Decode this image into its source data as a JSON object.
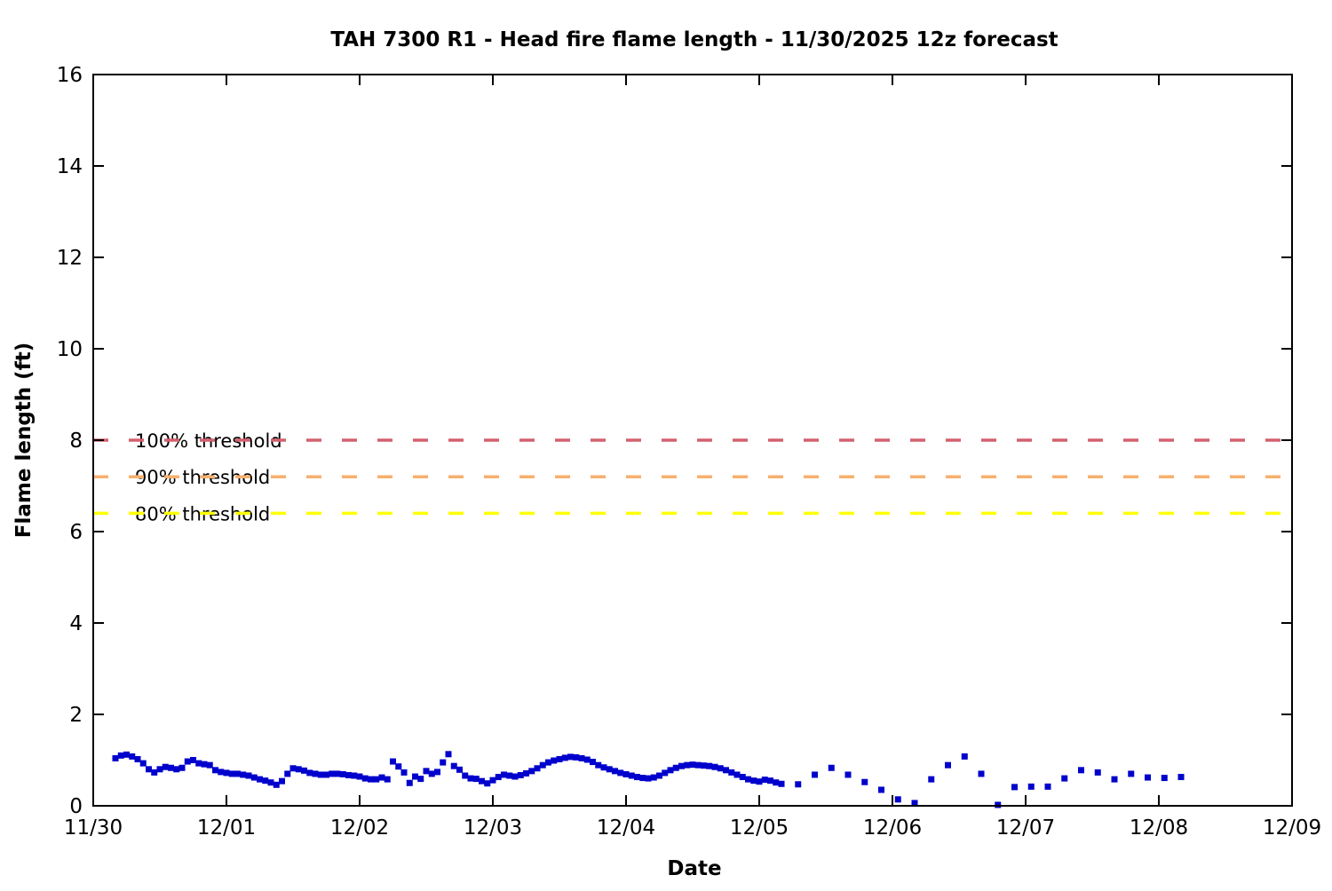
{
  "chart_data": {
    "type": "scatter",
    "title": "TAH 7300 R1 - Head fire flame length - 11/30/2025 12z forecast",
    "xlabel": "Date",
    "ylabel": "Flame length (ft)",
    "ylim": [
      0,
      16
    ],
    "yticks": [
      0,
      2,
      4,
      6,
      8,
      10,
      12,
      14,
      16
    ],
    "xlim_days": [
      0,
      9
    ],
    "xtick_labels": [
      "11/30",
      "12/01",
      "12/02",
      "12/03",
      "12/04",
      "12/05",
      "12/06",
      "12/07",
      "12/08",
      "12/09"
    ],
    "grid": false,
    "legend": "none",
    "marker_color": "#0000cc",
    "marker_shape": "square",
    "thresholds": [
      {
        "label": "100% threshold",
        "value": 8.0,
        "color": "#d4606f"
      },
      {
        "label": "90% threshold",
        "value": 7.2,
        "color": "#f7b06e"
      },
      {
        "label": "80% threshold",
        "value": 6.4,
        "color": "#ffff00"
      }
    ],
    "series": [
      {
        "name": "head fire flame length forecast (ft)",
        "segments": [
          {
            "start_day": 0.1667,
            "step_hours": 1,
            "values": [
              1.04,
              1.1,
              1.12,
              1.08,
              1.02,
              0.93,
              0.8,
              0.73,
              0.8,
              0.85,
              0.83,
              0.8,
              0.83,
              0.97,
              1.0,
              0.93,
              0.91,
              0.89,
              0.78,
              0.74,
              0.72,
              0.7,
              0.7,
              0.68,
              0.66,
              0.62,
              0.58,
              0.55,
              0.51,
              0.46,
              0.54,
              0.7,
              0.82,
              0.8,
              0.77,
              0.72,
              0.7,
              0.68,
              0.68,
              0.7,
              0.7,
              0.69,
              0.67,
              0.66,
              0.64,
              0.6,
              0.58,
              0.58,
              0.62,
              0.58,
              0.97,
              0.86,
              0.73,
              0.5,
              0.64,
              0.59,
              0.76,
              0.7,
              0.74,
              0.95,
              1.13,
              0.87,
              0.79,
              0.66,
              0.6,
              0.59,
              0.54,
              0.49,
              0.56,
              0.63,
              0.68,
              0.66,
              0.64,
              0.67,
              0.71,
              0.76,
              0.82,
              0.89,
              0.95,
              0.99,
              1.02,
              1.05,
              1.07,
              1.06,
              1.04,
              1.01,
              0.96,
              0.89,
              0.84,
              0.8,
              0.76,
              0.72,
              0.69,
              0.66,
              0.63,
              0.61,
              0.6,
              0.62,
              0.66,
              0.72,
              0.78,
              0.83,
              0.87,
              0.89,
              0.9,
              0.89,
              0.88,
              0.87,
              0.85,
              0.82,
              0.78,
              0.73,
              0.68,
              0.63,
              0.58,
              0.55,
              0.53,
              0.57,
              0.55,
              0.51,
              0.48
            ]
          },
          {
            "start_day": 5.2917,
            "step_hours": 3,
            "values": [
              0.47,
              0.68,
              0.83,
              0.68,
              0.52,
              0.35,
              0.14,
              0.06,
              0.58,
              0.89,
              1.08,
              0.7,
              0.02,
              0.41,
              0.42,
              0.42,
              0.6,
              0.78,
              0.73,
              0.58,
              0.7,
              0.62,
              0.61,
              0.63
            ]
          }
        ]
      }
    ]
  }
}
